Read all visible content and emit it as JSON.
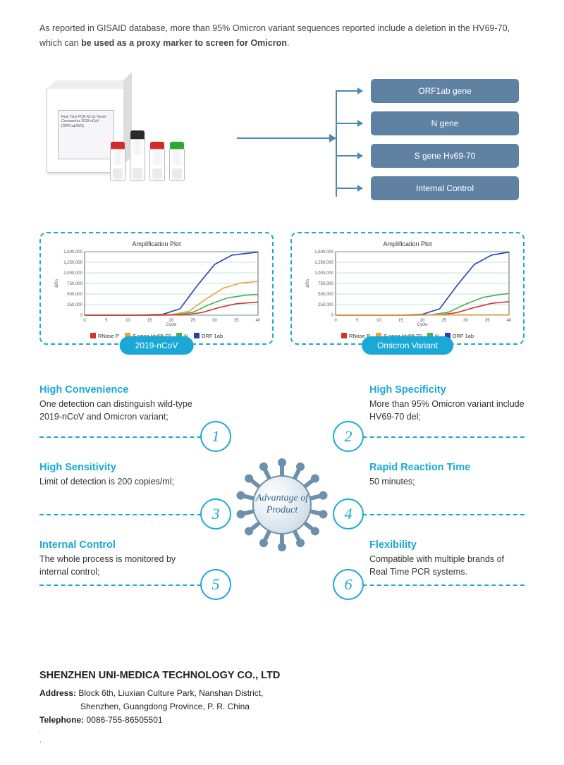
{
  "intro": {
    "text_a": "As reported in GISAID database, more than 95% Omicron variant sequences reported include a deletion in the HV69-70, which can ",
    "text_b": "be used as a proxy marker to screen for Omicron",
    "text_c": "."
  },
  "product_box_label": "Real Time PCR Kit for Novel Coronavirus 2019-nCoV (ORF1ab/N/S)",
  "vials": [
    {
      "cap_color": "#d62a2a"
    },
    {
      "cap_color": "#2a2a2a",
      "tall": true
    },
    {
      "cap_color": "#d62a2a"
    },
    {
      "cap_color": "#2fa82f"
    }
  ],
  "gene_targets": [
    {
      "label": "ORF1ab gene"
    },
    {
      "label": "N gene"
    },
    {
      "label": "S gene Hv69-70"
    },
    {
      "label": "Internal Control"
    }
  ],
  "charts": {
    "title": "Amplification Plot",
    "ylabel": "ΔRn",
    "xlabel": "Cycle",
    "xlim": [
      0,
      40
    ],
    "ylim": [
      0,
      1500000
    ],
    "yticks": [
      0,
      250000,
      500000,
      750000,
      1000000,
      1250000,
      1500000
    ],
    "yticklabels": [
      "0",
      "250,000",
      "500,000",
      "750,000",
      "1,000,000",
      "1,250,000",
      "1,500,000"
    ],
    "xticks": [
      0,
      5,
      10,
      15,
      20,
      25,
      30,
      35,
      40
    ],
    "legend": [
      {
        "label": "RNase P",
        "color": "#d23333"
      },
      {
        "label": "S gene Hv69-70",
        "color": "#e8a23a"
      },
      {
        "label": "N",
        "color": "#4bb050"
      },
      {
        "label": "ORF 1ab",
        "color": "#2a3fb0"
      }
    ],
    "left": {
      "tag": "2019-nCoV",
      "series": [
        {
          "color": "#2a3fb0",
          "pts": [
            [
              0,
              0
            ],
            [
              12,
              0
            ],
            [
              18,
              20000
            ],
            [
              22,
              150000
            ],
            [
              26,
              700000
            ],
            [
              30,
              1200000
            ],
            [
              34,
              1420000
            ],
            [
              40,
              1490000
            ]
          ]
        },
        {
          "color": "#e8a23a",
          "pts": [
            [
              0,
              0
            ],
            [
              14,
              0
            ],
            [
              20,
              15000
            ],
            [
              24,
              90000
            ],
            [
              28,
              380000
            ],
            [
              32,
              640000
            ],
            [
              36,
              760000
            ],
            [
              40,
              800000
            ]
          ]
        },
        {
          "color": "#4bb050",
          "pts": [
            [
              0,
              0
            ],
            [
              15,
              0
            ],
            [
              21,
              10000
            ],
            [
              25,
              70000
            ],
            [
              29,
              260000
            ],
            [
              33,
              410000
            ],
            [
              37,
              470000
            ],
            [
              40,
              490000
            ]
          ]
        },
        {
          "color": "#d23333",
          "pts": [
            [
              0,
              0
            ],
            [
              17,
              0
            ],
            [
              23,
              8000
            ],
            [
              27,
              60000
            ],
            [
              31,
              180000
            ],
            [
              35,
              270000
            ],
            [
              40,
              310000
            ]
          ]
        }
      ]
    },
    "right": {
      "tag": "Omicron Variant",
      "series": [
        {
          "color": "#2a3fb0",
          "pts": [
            [
              0,
              0
            ],
            [
              14,
              0
            ],
            [
              20,
              20000
            ],
            [
              24,
              150000
            ],
            [
              28,
              700000
            ],
            [
              32,
              1200000
            ],
            [
              36,
              1420000
            ],
            [
              40,
              1490000
            ]
          ]
        },
        {
          "color": "#4bb050",
          "pts": [
            [
              0,
              0
            ],
            [
              16,
              0
            ],
            [
              22,
              10000
            ],
            [
              26,
              70000
            ],
            [
              30,
              260000
            ],
            [
              34,
              420000
            ],
            [
              38,
              490000
            ],
            [
              40,
              510000
            ]
          ]
        },
        {
          "color": "#d23333",
          "pts": [
            [
              0,
              0
            ],
            [
              18,
              0
            ],
            [
              24,
              8000
            ],
            [
              28,
              60000
            ],
            [
              32,
              180000
            ],
            [
              36,
              280000
            ],
            [
              40,
              320000
            ]
          ]
        },
        {
          "color": "#e8a23a",
          "pts": [
            [
              0,
              0
            ],
            [
              40,
              10000
            ]
          ]
        }
      ]
    }
  },
  "virus_center": "Advantage of Product",
  "advantages": [
    {
      "n": "1",
      "title": "High Convenience",
      "desc": "One detection can distinguish wild-type 2019-nCoV and Omicron variant;",
      "side": "left",
      "row": 0
    },
    {
      "n": "2",
      "title": "High Specificity",
      "desc": "More than 95% Omicron variant include HV69-70 del;",
      "side": "right",
      "row": 0
    },
    {
      "n": "3",
      "title": "High Sensitivity",
      "desc": "Limit of detection is 200 copies/ml;",
      "side": "left",
      "row": 1
    },
    {
      "n": "4",
      "title": "Rapid Reaction Time",
      "desc": "50 minutes;",
      "side": "right",
      "row": 1
    },
    {
      "n": "5",
      "title": "Internal Control",
      "desc": "The whole process is monitored by internal control;",
      "side": "left",
      "row": 2
    },
    {
      "n": "6",
      "title": "Flexibility",
      "desc": "Compatible with multiple brands of Real Time PCR systems.",
      "side": "right",
      "row": 2
    }
  ],
  "footer": {
    "company": "SHENZHEN UNI-MEDICA TECHNOLOGY CO., LTD",
    "addr_label": "Address:",
    "addr1": "Block 6th, Liuxian Culture Park, Nanshan District,",
    "addr2": "Shenzhen, Guangdong Province, P. R. China",
    "tel_label": "Telephone:",
    "tel": "0086-755-86505501"
  },
  "colors": {
    "pill": "#5f82a3",
    "accent": "#1aa9d6",
    "arrow": "#4d89b5"
  }
}
